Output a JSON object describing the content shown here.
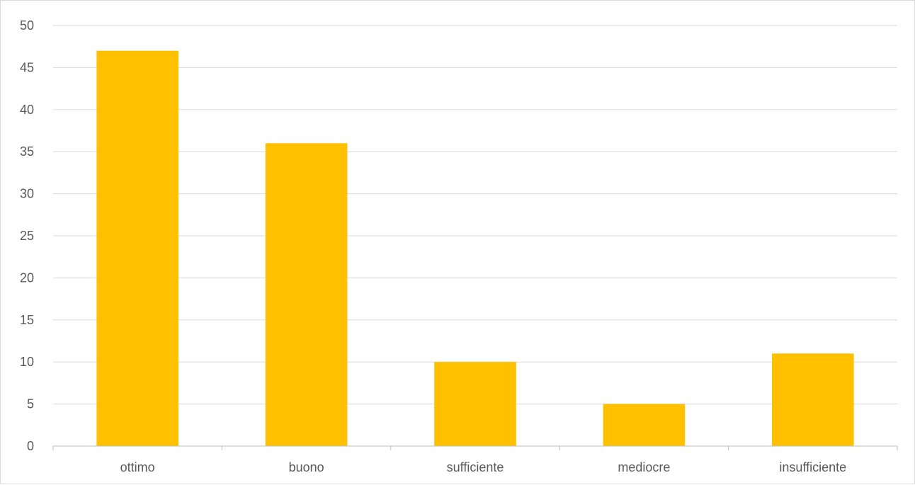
{
  "chart_data": {
    "type": "bar",
    "categories": [
      "ottimo",
      "buono",
      "sufficiente",
      "mediocre",
      "insufficiente"
    ],
    "values": [
      47,
      36,
      10,
      5,
      11
    ],
    "ylim": [
      0,
      50
    ],
    "yticks": [
      0,
      5,
      10,
      15,
      20,
      25,
      30,
      35,
      40,
      45,
      50
    ],
    "grid": true,
    "legend": "none",
    "bar_color": "#FFC000",
    "title": "",
    "xlabel": "",
    "ylabel": ""
  }
}
